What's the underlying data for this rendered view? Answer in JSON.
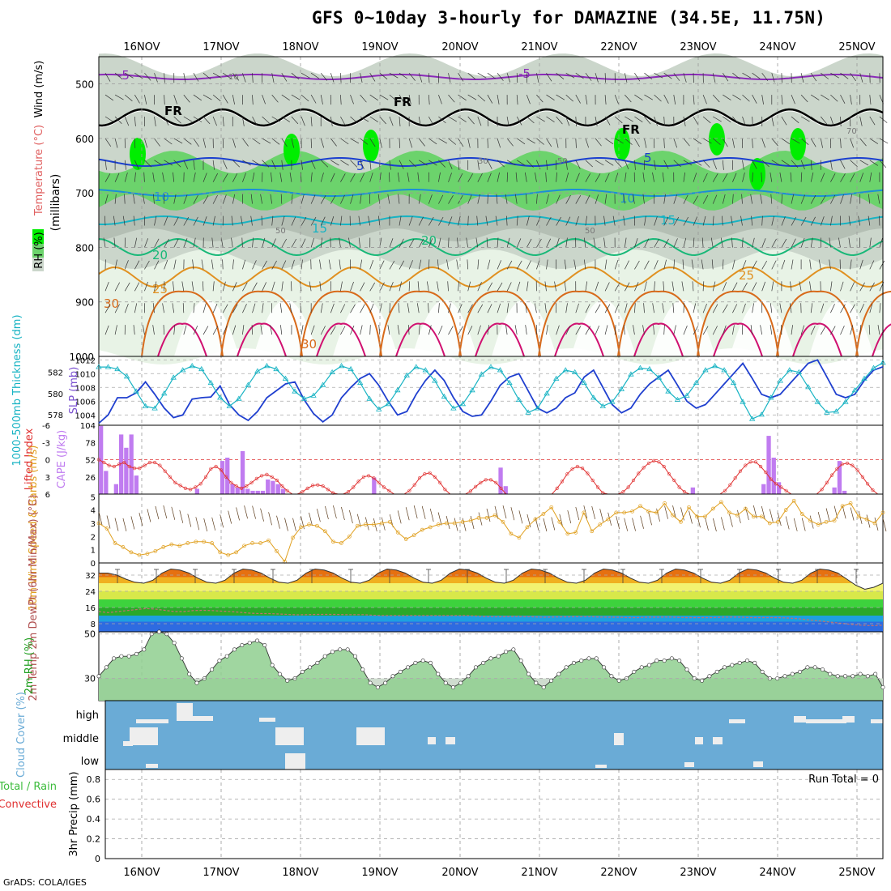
{
  "title": "GFS 0~10day 3-hourly for DAMAZINE (34.5E, 11.75N)",
  "footer": "GrADS: COLA/IGES",
  "colors": {
    "rh_light": "#e8f3e6",
    "rh_mid": "#cbd6cb",
    "rh_dark": "#b4bfb4",
    "rh_green": "#6cd36c",
    "rh_bright": "#00ee00",
    "slp_line": "#1f3fcf",
    "thickness_line": "#17b3c3",
    "cape_bar": "#c07cf0",
    "lifted_line": "#e03030",
    "wind_speed_line": "#e0a020",
    "rh2m_fill": "#8fcf8f",
    "cloud_bg": "#6aabd6"
  },
  "chart_data": [
    {
      "type": "heatmap",
      "panel": "upper_air",
      "x_dates": [
        "16NOV",
        "17NOV",
        "18NOV",
        "19NOV",
        "20NOV",
        "21NOV",
        "22NOV",
        "23NOV",
        "24NOV",
        "25NOV"
      ],
      "ylabel": "(millibars)",
      "y_ticks": [
        500,
        600,
        700,
        800,
        900,
        1000
      ],
      "ylim": [
        1000,
        450
      ],
      "side_label": [
        "RH (%)",
        "Temperature (°C)",
        "Wind (m/s)"
      ],
      "isotherm_labels": [
        "-5",
        "-5",
        "FR",
        "FR",
        "FR",
        "5",
        "5",
        "10",
        "10",
        "15",
        "15",
        "20",
        "20",
        "25",
        "25",
        "30",
        "30"
      ],
      "rh_labels": [
        "10",
        "50",
        "30",
        "50",
        "50",
        "70"
      ]
    },
    {
      "type": "line",
      "panel": "slp_thickness",
      "ylabel_left": "1000-500mb Thickness (dm)",
      "ylabel_right": "SLP (mb)",
      "left_ticks": [
        578,
        580,
        582
      ],
      "right_ticks": [
        1004,
        1006,
        1008,
        1010,
        1012
      ],
      "ylim_left": [
        577,
        583.5
      ],
      "ylim_right": [
        1002.5,
        1012.5
      ],
      "slp": [
        1002.8,
        1004,
        1006.5,
        1006.5,
        1007.2,
        1008.8,
        1007,
        1005,
        1003.6,
        1004,
        1006.3,
        1006.5,
        1006.6,
        1008.2,
        1005.5,
        1004,
        1003.2,
        1004.5,
        1006.5,
        1007.5,
        1008.5,
        1008.8,
        1006.2,
        1004.2,
        1003,
        1004,
        1006.5,
        1008,
        1009.3,
        1010,
        1008.3,
        1006,
        1004,
        1004.5,
        1007,
        1009,
        1010.5,
        1009,
        1006.5,
        1004.5,
        1003.8,
        1004,
        1006,
        1008.3,
        1009.5,
        1010,
        1007.5,
        1005,
        1004.3,
        1005,
        1006.5,
        1007.2,
        1009.5,
        1010.5,
        1008,
        1005.5,
        1004.3,
        1005,
        1007,
        1008.5,
        1009.5,
        1010.5,
        1008.3,
        1006,
        1005,
        1005.5,
        1007,
        1008.5,
        1010,
        1011.5,
        1009.3,
        1007,
        1006.5,
        1007,
        1008.5,
        1010,
        1011.5,
        1012,
        1009.5,
        1007,
        1006.5,
        1007,
        1009,
        1010.5,
        1011
      ],
      "thickness": [
        582.5,
        582.5,
        582.3,
        581.6,
        580.2,
        578.8,
        578.6,
        580,
        581.5,
        582.2,
        582.6,
        582.3,
        581,
        579.6,
        578.8,
        579.5,
        580.8,
        582.1,
        582.6,
        582.3,
        581.4,
        580.2,
        579.5,
        579.8,
        580.8,
        582,
        582.6,
        582.3,
        581,
        579.5,
        578.5,
        579,
        580.3,
        581.7,
        582.5,
        582.2,
        581.2,
        579.7,
        578.6,
        579,
        580.3,
        581.8,
        582.5,
        582.2,
        581,
        579.4,
        578.2,
        578.6,
        580,
        581.4,
        582.2,
        582,
        581,
        579.6,
        578.8,
        579.2,
        580.4,
        581.8,
        582.4,
        582.3,
        581.5,
        580.2,
        579.4,
        579.8,
        581,
        582.2,
        582.6,
        582.2,
        581,
        579.2,
        577.6,
        578,
        579.6,
        581.2,
        582.2,
        582,
        580.6,
        579.2,
        578.2,
        578.3,
        579.2,
        580.3,
        581.4,
        582.4,
        582.9
      ]
    },
    {
      "type": "bar",
      "panel": "cape_lifted",
      "ylabel_left": "Lifted Index",
      "ylabel_right": "CAPE (J/kg)",
      "lifted_ticks": [
        "-6",
        "-3",
        "0",
        "3",
        "6"
      ],
      "cape_ticks": [
        26,
        52,
        78,
        104
      ],
      "cape_ylim": [
        0,
        104
      ],
      "lifted_ylim": [
        6,
        -6
      ],
      "cape": [
        103,
        35,
        0,
        15,
        90,
        70,
        90,
        28,
        0,
        0,
        0,
        0,
        0,
        0,
        0,
        0,
        0,
        0,
        0,
        8,
        0,
        0,
        0,
        0,
        50,
        55,
        15,
        10,
        65,
        8,
        5,
        5,
        5,
        22,
        20,
        15,
        8,
        0,
        0,
        0,
        0,
        0,
        0,
        0,
        0,
        0,
        0,
        0,
        0,
        0,
        0,
        0,
        0,
        0,
        25,
        0,
        0,
        0,
        0,
        0,
        0,
        0,
        0,
        0,
        0,
        0,
        0,
        0,
        0,
        0,
        0,
        0,
        0,
        0,
        0,
        0,
        0,
        0,
        0,
        40,
        12,
        0,
        0,
        0,
        0,
        0,
        0,
        0,
        0,
        0,
        0,
        0,
        0,
        0,
        0,
        0,
        0,
        0,
        0,
        0,
        0,
        0,
        0,
        0,
        0,
        0,
        0,
        0,
        0,
        0,
        0,
        0,
        0,
        0,
        0,
        0,
        0,
        10,
        0,
        0,
        0,
        0,
        0,
        0,
        0,
        0,
        0,
        0,
        0,
        0,
        0,
        15,
        88,
        55,
        18,
        0,
        0,
        0,
        0,
        0,
        0,
        0,
        0,
        0,
        0,
        10,
        50,
        5,
        0,
        0,
        0,
        0,
        0,
        0,
        0
      ],
      "lifted_index": [
        0,
        0.5,
        1,
        1.2,
        0.8,
        0.5,
        1.2,
        1.5,
        1.5,
        1,
        0.5,
        0.5,
        1,
        2,
        3,
        4,
        4.5,
        5,
        5.2,
        4.8,
        4.2,
        3,
        1.6,
        1.2,
        1.8,
        3,
        4,
        4.6,
        5,
        4.6,
        4,
        3.3,
        2.8,
        2.6,
        3,
        3.6,
        4.6,
        5.4,
        6,
        6,
        5.6,
        5,
        4.5,
        4.4,
        4.6,
        5.2,
        5.8,
        6,
        6,
        5.6,
        4.8,
        3.8,
        3,
        2.8,
        3.2,
        4,
        4.8,
        5.4,
        6,
        6,
        6,
        5.4,
        4.4,
        3.2,
        2.5,
        2.3,
        3,
        4,
        5.2,
        6,
        6,
        6,
        6,
        5.5,
        4.7,
        4,
        3.5,
        3.5,
        4,
        5,
        6,
        6,
        6,
        6,
        6,
        6,
        6,
        6,
        6,
        6,
        5,
        3.8,
        2.5,
        1.6,
        1.2,
        1.5,
        2.4,
        3.6,
        4.8,
        5.8,
        6,
        6,
        6,
        5.6,
        4.8,
        3.6,
        2.4,
        1.4,
        0.6,
        0.2,
        0.4,
        1.2,
        2.5,
        3.6,
        4.8,
        5.6,
        6,
        6,
        6,
        6,
        6,
        6,
        6,
        5.4,
        4.4,
        3.2,
        2,
        1,
        0.4,
        0.4,
        1.2,
        2.2,
        3.4,
        4.2,
        4.8,
        5.4,
        6,
        6,
        6,
        6,
        6,
        6,
        5.2,
        4,
        2.7,
        1.6,
        0.8,
        0.6,
        1,
        1.8,
        3,
        4.2,
        5.3,
        6,
        6
      ]
    },
    {
      "type": "line",
      "panel": "wind10m",
      "ylabel": "10m Wind Speed & Barbs (m/s)",
      "y_ticks": [
        0,
        1,
        2,
        3,
        4,
        5
      ],
      "ylim": [
        0,
        5.2
      ],
      "wind_speed": [
        3,
        2.6,
        1.5,
        1.2,
        0.8,
        0.6,
        0.7,
        0.9,
        1.2,
        1.4,
        1.3,
        1.5,
        1.6,
        1.6,
        1.5,
        0.8,
        0.6,
        0.8,
        1.3,
        1.5,
        1.5,
        1.7,
        0.9,
        0.1,
        1.9,
        2.7,
        2.9,
        2.8,
        2.4,
        1.6,
        1.5,
        2,
        2.8,
        2.9,
        2.9,
        3,
        3.1,
        2.3,
        1.8,
        2.1,
        2.5,
        2.7,
        2.9,
        3,
        3,
        3.1,
        3.2,
        3.4,
        3.4,
        3.6,
        3.1,
        2.2,
        1.9,
        2.7,
        3.3,
        3.7,
        4.2,
        3.1,
        2.2,
        2.3,
        3.8,
        2.4,
        2.9,
        3.3,
        3.8,
        3.8,
        3.9,
        4.3,
        3.9,
        3.8,
        4.5,
        3.6,
        3.1,
        4.2,
        3.5,
        3.5,
        4.1,
        4.6,
        3.8,
        3.6,
        4.1,
        3.5,
        3.5,
        3,
        3.1,
        4,
        4.7,
        3.7,
        3.2,
        2.9,
        3.1,
        3.2,
        4.3,
        4.5,
        3.5,
        3.3,
        3,
        3.8
      ]
    },
    {
      "type": "area",
      "panel": "temp2m",
      "ylabel": "2m Temp 2m DewPt (6hr Min/Max) (°C)",
      "y_ticks": [
        8,
        16,
        24,
        32
      ],
      "ylim": [
        4,
        38
      ],
      "temp": [
        33,
        33,
        32,
        30,
        28.5,
        28,
        29.5,
        33,
        35,
        34.5,
        33,
        30.5,
        28.5,
        28,
        29.5,
        33,
        35,
        34.5,
        33,
        30.5,
        28.5,
        28,
        29.5,
        33,
        35,
        34.5,
        33,
        30.5,
        28.5,
        28,
        29.5,
        33,
        35,
        34.5,
        33,
        30.5,
        28.5,
        28,
        29.5,
        33,
        35,
        34.5,
        33,
        30.5,
        28.5,
        28,
        29.5,
        33,
        35,
        34.5,
        33,
        30.5,
        28.5,
        28,
        29.5,
        33,
        35,
        34.5,
        33,
        30.5,
        28.5,
        28,
        29.5,
        33,
        35,
        34.5,
        33,
        30.5,
        28.5,
        28,
        29.5,
        33,
        35,
        34.5,
        33,
        30.5,
        28.5,
        28,
        29.5,
        33,
        35,
        34.5,
        33,
        30,
        27,
        25,
        26,
        28
      ],
      "dewpt": [
        14,
        13.5,
        14,
        14.5,
        15,
        15.5,
        15.2,
        14.6,
        14,
        14,
        14.5,
        14.6,
        14.5,
        14.2,
        14,
        13.6,
        13.2,
        13,
        13,
        12.8,
        12.6,
        12.4,
        12.5,
        12.6,
        12.6,
        12.6,
        12.5,
        12.5,
        12.5,
        12.2,
        12,
        12,
        12,
        12,
        12,
        12,
        12,
        12,
        12,
        12,
        11.8,
        11.5,
        11.4,
        11.5,
        11.6,
        11.5,
        11.4,
        11.2,
        11.3,
        11.4,
        11.4,
        11.5,
        11.5,
        11.3,
        11.2,
        11.2,
        11,
        11,
        11.2,
        11.2,
        11.3,
        11.2,
        11,
        11,
        11,
        11,
        11.2,
        11.3,
        11.2,
        11,
        11,
        11,
        11,
        10.8,
        10.5,
        10,
        9.5,
        9,
        8.5,
        8,
        7.5,
        7.2,
        7,
        7.3
      ]
    },
    {
      "type": "area",
      "panel": "rh2m",
      "ylabel": "2m RH (%)",
      "y_ticks": [
        30,
        50
      ],
      "ylim": [
        20,
        51
      ],
      "rh": [
        31,
        35,
        39,
        40,
        40,
        41,
        43,
        50,
        51,
        50,
        46,
        39,
        32,
        28,
        30,
        34,
        38,
        40,
        43,
        45,
        46,
        47,
        45,
        36,
        32,
        29,
        30,
        33,
        35,
        37,
        40,
        42,
        43,
        43,
        40,
        34,
        28,
        26,
        28,
        31,
        33,
        35,
        37,
        38,
        37,
        32,
        28,
        26,
        28,
        31,
        35,
        37,
        39,
        40,
        42,
        43,
        38,
        32,
        28,
        26,
        29,
        32,
        35,
        37,
        38,
        39,
        39,
        35,
        31,
        29,
        30,
        33,
        35,
        36,
        38,
        38,
        39,
        38,
        34,
        30,
        29,
        31,
        33,
        35,
        36,
        37,
        38,
        37,
        33,
        30,
        30,
        31,
        32,
        33,
        35,
        35,
        34,
        32,
        31,
        31,
        31,
        32,
        31,
        32,
        26
      ]
    },
    {
      "type": "heatmap",
      "panel": "cloud_cover",
      "ylabel": "Cloud Cover (%)",
      "levels": [
        "high",
        "middle",
        "low"
      ]
    },
    {
      "type": "bar",
      "panel": "precip",
      "ylabel": "3hr Precip (mm)",
      "legend": [
        "Total / Rain",
        "Convective"
      ],
      "run_total": "Run Total = 0",
      "y_ticks": [
        "0",
        "0.2",
        "0.4",
        "0.6",
        "0.8"
      ],
      "ylim": [
        0,
        0.9
      ]
    }
  ]
}
